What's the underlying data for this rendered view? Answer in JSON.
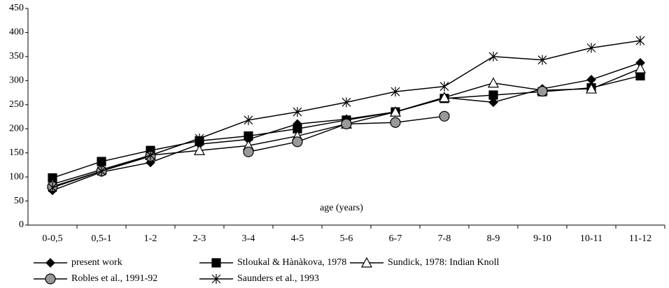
{
  "chart_data": {
    "type": "line",
    "annotation": "age (years)",
    "categories": [
      "0-0,5",
      "0,5-1",
      "1-2",
      "2-3",
      "3-4",
      "4-5",
      "5-6",
      "6-7",
      "7-8",
      "8-9",
      "9-10",
      "10-11",
      "11-12"
    ],
    "series": [
      {
        "name": "present work",
        "color": "#000000",
        "marker": "diamond",
        "values": [
          72,
          110,
          130,
          168,
          178,
          210,
          220,
          235,
          265,
          255,
          283,
          302,
          337
        ]
      },
      {
        "name": "Stloukal & Hànàkova, 1978",
        "color": "#000000",
        "marker": "square",
        "values": [
          98,
          132,
          155,
          175,
          185,
          200,
          218,
          235,
          263,
          270,
          277,
          285,
          310
        ]
      },
      {
        "name": "Sundick, 1978: Indian Knoll",
        "color": "#000000",
        "marker": "triangle",
        "values": [
          85,
          115,
          145,
          155,
          165,
          185,
          210,
          235,
          265,
          295,
          280,
          283,
          325
        ]
      },
      {
        "name": "Robles et al., 1991-92",
        "color": "#000000",
        "marker": "circle",
        "values": [
          80,
          112,
          143,
          null,
          152,
          173,
          210,
          213,
          226,
          null,
          278,
          null,
          null
        ]
      },
      {
        "name": "Saunders et al., 1993",
        "color": "#000000",
        "marker": "star",
        "values": [
          78,
          112,
          145,
          180,
          218,
          235,
          255,
          277,
          288,
          350,
          343,
          368,
          383
        ]
      }
    ],
    "ylim": [
      0,
      450
    ],
    "yticks": [
      0,
      50,
      100,
      150,
      200,
      250,
      300,
      350,
      400,
      450
    ],
    "grid": false
  }
}
